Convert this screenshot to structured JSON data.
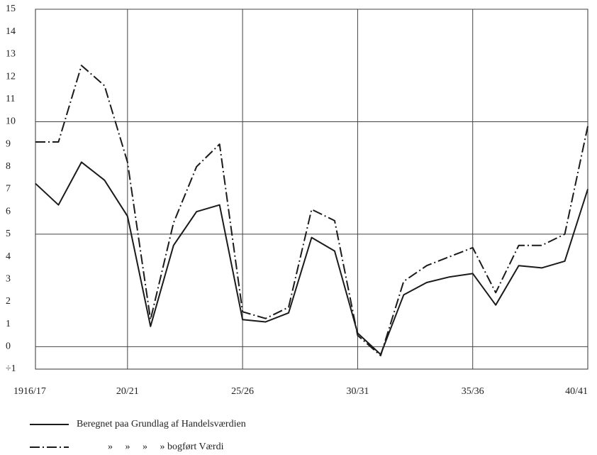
{
  "chart_data": {
    "type": "line",
    "categories": [
      "1916/17",
      null,
      null,
      null,
      "20/21",
      null,
      null,
      null,
      null,
      "25/26",
      null,
      null,
      null,
      null,
      "30/31",
      null,
      null,
      null,
      null,
      "35/36",
      null,
      null,
      null,
      null,
      "40/41"
    ],
    "series": [
      {
        "name": "Beregnet paa Grundlag af Handelsværdien",
        "color": "#1a1a1a",
        "linestyle": "solid",
        "values": [
          7.25,
          6.3,
          8.2,
          7.4,
          5.8,
          0.9,
          4.5,
          6.0,
          6.3,
          1.2,
          1.1,
          1.5,
          4.85,
          4.25,
          0.6,
          -0.35,
          2.3,
          2.85,
          3.1,
          3.25,
          1.85,
          3.6,
          3.5,
          3.8,
          7.0
        ]
      },
      {
        "name": "»     »     »     » bogført Værdi",
        "color": "#1a1a1a",
        "linestyle": "dashdot",
        "values": [
          9.1,
          9.1,
          12.5,
          11.6,
          8.2,
          1.2,
          5.5,
          8.0,
          9.0,
          1.55,
          1.25,
          1.75,
          6.1,
          5.6,
          0.5,
          -0.4,
          2.9,
          3.6,
          4.0,
          4.4,
          2.4,
          4.5,
          4.5,
          5.0,
          9.8
        ]
      }
    ],
    "ylim": [
      -1,
      15
    ],
    "yticks": [
      {
        "value": -1,
        "label": "÷1"
      },
      0,
      1,
      2,
      3,
      4,
      5,
      6,
      7,
      8,
      9,
      10,
      11,
      12,
      13,
      14,
      15
    ],
    "grid": true,
    "ygrid_step": 5
  }
}
